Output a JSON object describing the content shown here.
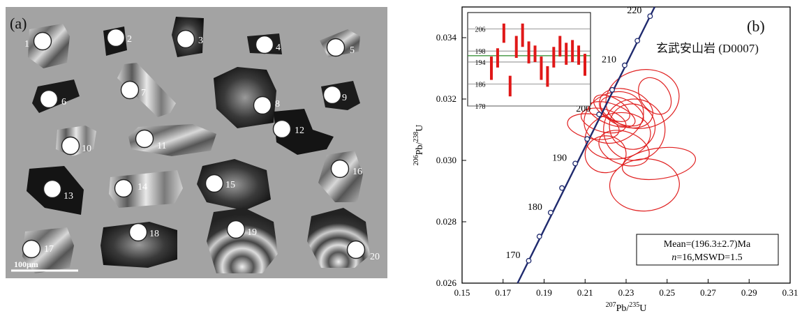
{
  "panel_a": {
    "label": "(a)",
    "scale_bar": "100μm",
    "spot_labels": [
      "1",
      "2",
      "3",
      "4",
      "5",
      "6",
      "7",
      "8",
      "9",
      "10",
      "11",
      "12",
      "13",
      "14",
      "15",
      "16",
      "17",
      "18",
      "19",
      "20"
    ]
  },
  "chart_data": {
    "type": "concordia",
    "panel_label": "(b)",
    "sample": "玄武安山岩 (D0007)",
    "xlabel": {
      "sup": "207",
      "main": "Pb/",
      "sup2": "235",
      "main2": "U"
    },
    "ylabel": {
      "sup": "206",
      "main": "Pb/",
      "sup2": "238",
      "main2": "U"
    },
    "xlim": [
      0.15,
      0.31
    ],
    "ylim": [
      0.026,
      0.035
    ],
    "xticks": [
      "0.15",
      "0.17",
      "0.19",
      "0.21",
      "0.23",
      "0.25",
      "0.27",
      "0.29",
      "0.31"
    ],
    "yticks": [
      "0.026",
      "0.028",
      "0.030",
      "0.032",
      "0.034"
    ],
    "concordia_ages": [
      "170",
      "180",
      "190",
      "200",
      "210",
      "220"
    ],
    "concordia_points": [
      {
        "x": 0.1825,
        "y": 0.02673
      },
      {
        "x": 0.1877,
        "y": 0.02752
      },
      {
        "x": 0.1932,
        "y": 0.0283
      },
      {
        "x": 0.1987,
        "y": 0.0291
      },
      {
        "x": 0.2052,
        "y": 0.0299
      },
      {
        "x": 0.211,
        "y": 0.0307
      },
      {
        "x": 0.2168,
        "y": 0.0315
      },
      {
        "x": 0.2232,
        "y": 0.0323
      },
      {
        "x": 0.2293,
        "y": 0.0331
      },
      {
        "x": 0.2355,
        "y": 0.0339
      },
      {
        "x": 0.2417,
        "y": 0.0347
      }
    ],
    "ellipses": [
      {
        "x": 0.226,
        "y": 0.0308,
        "rx": 0.016,
        "ry": 0.00075,
        "angle": -8
      },
      {
        "x": 0.239,
        "y": 0.0292,
        "rx": 0.017,
        "ry": 0.00085,
        "angle": -3
      },
      {
        "x": 0.224,
        "y": 0.0314,
        "rx": 0.015,
        "ry": 0.0008,
        "angle": -25
      },
      {
        "x": 0.238,
        "y": 0.032,
        "rx": 0.018,
        "ry": 0.00095,
        "angle": -12
      },
      {
        "x": 0.233,
        "y": 0.0311,
        "rx": 0.011,
        "ry": 0.00075,
        "angle": -50
      },
      {
        "x": 0.22,
        "y": 0.0302,
        "rx": 0.01,
        "ry": 0.0006,
        "angle": -5
      },
      {
        "x": 0.228,
        "y": 0.0316,
        "rx": 0.006,
        "ry": 0.00075,
        "angle": -65
      },
      {
        "x": 0.214,
        "y": 0.0311,
        "rx": 0.006,
        "ry": 0.00085,
        "angle": -80
      },
      {
        "x": 0.223,
        "y": 0.0315,
        "rx": 0.005,
        "ry": 0.0008,
        "angle": -70
      },
      {
        "x": 0.244,
        "y": 0.0321,
        "rx": 0.007,
        "ry": 0.00065,
        "angle": -35
      },
      {
        "x": 0.23,
        "y": 0.0317,
        "rx": 0.009,
        "ry": 0.0009,
        "angle": -70
      },
      {
        "x": 0.246,
        "y": 0.0299,
        "rx": 0.018,
        "ry": 0.0005,
        "angle": -8
      },
      {
        "x": 0.223,
        "y": 0.0317,
        "rx": 0.005,
        "ry": 0.00065,
        "angle": -60
      },
      {
        "x": 0.234,
        "y": 0.031,
        "rx": 0.015,
        "ry": 0.001,
        "angle": -35
      },
      {
        "x": 0.229,
        "y": 0.0304,
        "rx": 0.008,
        "ry": 0.00085,
        "angle": -70
      },
      {
        "x": 0.219,
        "y": 0.0313,
        "rx": 0.0055,
        "ry": 0.00075,
        "angle": -75
      }
    ],
    "inset": {
      "yticks": [
        "206",
        "198",
        "194",
        "186",
        "178"
      ],
      "ylim": [
        178,
        212
      ],
      "mean_line": 196.3,
      "bars": [
        {
          "lo": 187.5,
          "hi": 196.0
        },
        {
          "lo": 192.0,
          "hi": 199.0
        },
        {
          "lo": 201.0,
          "hi": 208.0
        },
        {
          "lo": 181.5,
          "hi": 189.0
        },
        {
          "lo": 195.5,
          "hi": 203.5
        },
        {
          "lo": 199.5,
          "hi": 208.0
        },
        {
          "lo": 193.5,
          "hi": 201.5
        },
        {
          "lo": 194.0,
          "hi": 200.0
        },
        {
          "lo": 187.5,
          "hi": 196.0
        },
        {
          "lo": 185.0,
          "hi": 192.5
        },
        {
          "lo": 192.0,
          "hi": 199.5
        },
        {
          "lo": 196.0,
          "hi": 203.5
        },
        {
          "lo": 193.0,
          "hi": 201.0
        },
        {
          "lo": 194.0,
          "hi": 202.0
        },
        {
          "lo": 193.0,
          "hi": 200.0
        },
        {
          "lo": 189.0,
          "hi": 197.0
        }
      ]
    },
    "mean_line1": "Mean=(196.3±2.7)Ma",
    "mean_line2_italic": "n",
    "mean_line2_rest": "=16,MSWD=1.5"
  }
}
